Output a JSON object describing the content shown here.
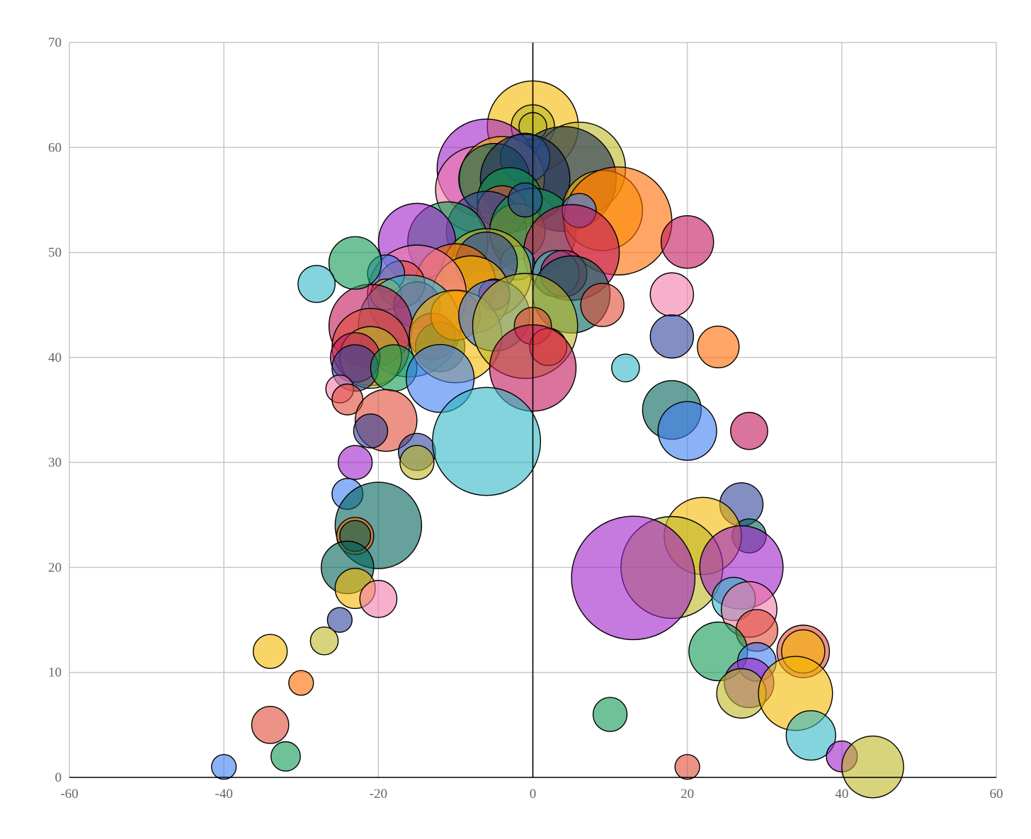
{
  "chart_data": {
    "type": "scatter",
    "variant": "bubble",
    "title": "",
    "xlabel": "",
    "ylabel": "",
    "xlim": [
      -60,
      60
    ],
    "ylim": [
      0,
      70
    ],
    "x_ticks": [
      -60,
      -40,
      -20,
      0,
      20,
      40,
      60
    ],
    "y_ticks": [
      0,
      10,
      20,
      30,
      40,
      50,
      60,
      70
    ],
    "grid": true,
    "legend": "none",
    "bubble_opacity": 0.6,
    "palette": {
      "yellow": "#f5b800",
      "olive": "#bdb824",
      "purple": "#a020c8",
      "pink": "#f47aa8",
      "blue": "#3d7df2",
      "teal": "#30b8c4",
      "green": "#0f9a52",
      "darkteal": "#00635a",
      "orange": "#ff6a00",
      "salmon": "#e04a36",
      "navy": "#30449a",
      "crimson": "#c2185b",
      "slate": "#1c2e5a"
    },
    "points": [
      {
        "x": 0,
        "y": 62,
        "r": 5.9,
        "c": "yellow"
      },
      {
        "x": 0,
        "y": 62,
        "r": 2.8,
        "c": "olive"
      },
      {
        "x": 0,
        "y": 62,
        "r": 1.8,
        "c": "olive"
      },
      {
        "x": 6,
        "y": 58,
        "r": 6.0,
        "c": "olive"
      },
      {
        "x": 4,
        "y": 57,
        "r": 6.8,
        "c": "slate"
      },
      {
        "x": -6,
        "y": 58,
        "r": 6.4,
        "c": "purple"
      },
      {
        "x": -7,
        "y": 56,
        "r": 5.6,
        "c": "pink"
      },
      {
        "x": -4,
        "y": 57,
        "r": 5.5,
        "c": "yellow"
      },
      {
        "x": -1,
        "y": 59,
        "r": 3.2,
        "c": "blue"
      },
      {
        "x": -5,
        "y": 57,
        "r": 4.6,
        "c": "darkteal"
      },
      {
        "x": -1,
        "y": 57,
        "r": 5.8,
        "c": "slate"
      },
      {
        "x": -3,
        "y": 55,
        "r": 4.2,
        "c": "green"
      },
      {
        "x": -4,
        "y": 54,
        "r": 3.2,
        "c": "salmon"
      },
      {
        "x": -6,
        "y": 52,
        "r": 5.2,
        "c": "navy"
      },
      {
        "x": -2,
        "y": 52,
        "r": 3.6,
        "c": "orange"
      },
      {
        "x": 0,
        "y": 52,
        "r": 5.6,
        "c": "green"
      },
      {
        "x": -1,
        "y": 55,
        "r": 2.2,
        "c": "navy"
      },
      {
        "x": -11,
        "y": 51,
        "r": 5.2,
        "c": "green"
      },
      {
        "x": -15,
        "y": 51,
        "r": 5.0,
        "c": "purple"
      },
      {
        "x": 9,
        "y": 54,
        "r": 5.2,
        "c": "yellow"
      },
      {
        "x": 11,
        "y": 53,
        "r": 7.0,
        "c": "orange"
      },
      {
        "x": 6,
        "y": 54,
        "r": 2.2,
        "c": "blue"
      },
      {
        "x": 5,
        "y": 50,
        "r": 6.2,
        "c": "crimson"
      },
      {
        "x": 3,
        "y": 48,
        "r": 3.0,
        "c": "teal"
      },
      {
        "x": 4,
        "y": 48,
        "r": 3.0,
        "c": "crimson"
      },
      {
        "x": 5,
        "y": 46,
        "r": 5.0,
        "c": "darkteal"
      },
      {
        "x": 9,
        "y": 45,
        "r": 2.8,
        "c": "salmon"
      },
      {
        "x": -2,
        "y": 49,
        "r": 2.2,
        "c": "teal"
      },
      {
        "x": -6,
        "y": 48,
        "r": 5.8,
        "c": "olive"
      },
      {
        "x": -6,
        "y": 49,
        "r": 4.0,
        "c": "navy"
      },
      {
        "x": -10,
        "y": 47,
        "r": 5.2,
        "c": "orange"
      },
      {
        "x": -8,
        "y": 46,
        "r": 5.0,
        "c": "yellow"
      },
      {
        "x": -5,
        "y": 46,
        "r": 2.0,
        "c": "crimson"
      },
      {
        "x": -15,
        "y": 46,
        "r": 6.4,
        "c": "pink"
      },
      {
        "x": -17,
        "y": 47,
        "r": 3.0,
        "c": "salmon"
      },
      {
        "x": -19,
        "y": 48,
        "r": 2.4,
        "c": "blue"
      },
      {
        "x": -19,
        "y": 46,
        "r": 2.0,
        "c": "yellow"
      },
      {
        "x": -15,
        "y": 45,
        "r": 3.0,
        "c": "crimson"
      },
      {
        "x": -16,
        "y": 43,
        "r": 6.6,
        "c": "teal"
      },
      {
        "x": -21,
        "y": 43,
        "r": 5.4,
        "c": "crimson"
      },
      {
        "x": -21,
        "y": 41,
        "r": 5.0,
        "c": "salmon"
      },
      {
        "x": -21,
        "y": 40,
        "r": 4.0,
        "c": "olive"
      },
      {
        "x": -23,
        "y": 40,
        "r": 3.2,
        "c": "crimson"
      },
      {
        "x": -23,
        "y": 39,
        "r": 3.0,
        "c": "navy"
      },
      {
        "x": -18,
        "y": 39,
        "r": 3.0,
        "c": "green"
      },
      {
        "x": -13,
        "y": 42,
        "r": 3.0,
        "c": "crimson"
      },
      {
        "x": -12,
        "y": 41,
        "r": 3.2,
        "c": "darkteal"
      },
      {
        "x": -10,
        "y": 44,
        "r": 3.2,
        "c": "orange"
      },
      {
        "x": -10,
        "y": 42,
        "r": 6.0,
        "c": "yellow"
      },
      {
        "x": -12,
        "y": 38,
        "r": 4.4,
        "c": "blue"
      },
      {
        "x": -5,
        "y": 44,
        "r": 4.6,
        "c": "blue"
      },
      {
        "x": -1,
        "y": 43,
        "r": 6.8,
        "c": "olive"
      },
      {
        "x": 0,
        "y": 43,
        "r": 2.4,
        "c": "salmon"
      },
      {
        "x": 2,
        "y": 41,
        "r": 2.4,
        "c": "orange"
      },
      {
        "x": 0,
        "y": 39,
        "r": 5.6,
        "c": "crimson"
      },
      {
        "x": -23,
        "y": 49,
        "r": 3.4,
        "c": "green"
      },
      {
        "x": -28,
        "y": 47,
        "r": 2.4,
        "c": "teal"
      },
      {
        "x": -25,
        "y": 37,
        "r": 1.8,
        "c": "pink"
      },
      {
        "x": -24,
        "y": 36,
        "r": 2.0,
        "c": "salmon"
      },
      {
        "x": -19,
        "y": 34,
        "r": 4.0,
        "c": "salmon"
      },
      {
        "x": -21,
        "y": 33,
        "r": 2.2,
        "c": "navy"
      },
      {
        "x": -15,
        "y": 31,
        "r": 2.4,
        "c": "navy"
      },
      {
        "x": -15,
        "y": 30,
        "r": 2.2,
        "c": "olive"
      },
      {
        "x": -6,
        "y": 32,
        "r": 7.0,
        "c": "teal"
      },
      {
        "x": -23,
        "y": 30,
        "r": 2.2,
        "c": "purple"
      },
      {
        "x": -24,
        "y": 27,
        "r": 2.0,
        "c": "blue"
      },
      {
        "x": -20,
        "y": 24,
        "r": 5.6,
        "c": "darkteal"
      },
      {
        "x": -23,
        "y": 23,
        "r": 2.4,
        "c": "orange"
      },
      {
        "x": -23,
        "y": 23,
        "r": 2.0,
        "c": "darkteal"
      },
      {
        "x": -24,
        "y": 20,
        "r": 3.4,
        "c": "darkteal"
      },
      {
        "x": -23,
        "y": 18,
        "r": 2.6,
        "c": "yellow"
      },
      {
        "x": -20,
        "y": 17,
        "r": 2.4,
        "c": "pink"
      },
      {
        "x": -25,
        "y": 15,
        "r": 1.6,
        "c": "navy"
      },
      {
        "x": -27,
        "y": 13,
        "r": 1.8,
        "c": "olive"
      },
      {
        "x": -34,
        "y": 12,
        "r": 2.2,
        "c": "yellow"
      },
      {
        "x": -30,
        "y": 9,
        "r": 1.6,
        "c": "orange"
      },
      {
        "x": -34,
        "y": 5,
        "r": 2.4,
        "c": "salmon"
      },
      {
        "x": -32,
        "y": 2,
        "r": 1.9,
        "c": "green"
      },
      {
        "x": -40,
        "y": 1,
        "r": 1.6,
        "c": "blue"
      },
      {
        "x": 20,
        "y": 51,
        "r": 3.4,
        "c": "crimson"
      },
      {
        "x": 18,
        "y": 46,
        "r": 2.8,
        "c": "pink"
      },
      {
        "x": 18,
        "y": 42,
        "r": 2.8,
        "c": "navy"
      },
      {
        "x": 24,
        "y": 41,
        "r": 2.7,
        "c": "orange"
      },
      {
        "x": 12,
        "y": 39,
        "r": 1.8,
        "c": "teal"
      },
      {
        "x": 18,
        "y": 35,
        "r": 3.8,
        "c": "darkteal"
      },
      {
        "x": 20,
        "y": 33,
        "r": 3.8,
        "c": "blue"
      },
      {
        "x": 28,
        "y": 33,
        "r": 2.4,
        "c": "crimson"
      },
      {
        "x": 27,
        "y": 26,
        "r": 2.8,
        "c": "navy"
      },
      {
        "x": 28,
        "y": 23,
        "r": 2.2,
        "c": "darkteal"
      },
      {
        "x": 22,
        "y": 23,
        "r": 5.0,
        "c": "yellow"
      },
      {
        "x": 18,
        "y": 20,
        "r": 6.6,
        "c": "olive"
      },
      {
        "x": 13,
        "y": 19,
        "r": 8.0,
        "c": "purple"
      },
      {
        "x": 27,
        "y": 20,
        "r": 5.4,
        "c": "purple"
      },
      {
        "x": 26,
        "y": 17,
        "r": 2.8,
        "c": "teal"
      },
      {
        "x": 28,
        "y": 16,
        "r": 3.6,
        "c": "pink"
      },
      {
        "x": 29,
        "y": 14,
        "r": 2.7,
        "c": "salmon"
      },
      {
        "x": 24,
        "y": 12,
        "r": 3.8,
        "c": "green"
      },
      {
        "x": 29,
        "y": 11,
        "r": 2.5,
        "c": "blue"
      },
      {
        "x": 28,
        "y": 9,
        "r": 3.2,
        "c": "purple"
      },
      {
        "x": 27,
        "y": 8,
        "r": 3.2,
        "c": "olive"
      },
      {
        "x": 35,
        "y": 12,
        "r": 3.4,
        "c": "salmon"
      },
      {
        "x": 35,
        "y": 12,
        "r": 2.8,
        "c": "yellow"
      },
      {
        "x": 34,
        "y": 8,
        "r": 4.8,
        "c": "yellow"
      },
      {
        "x": 36,
        "y": 4,
        "r": 3.2,
        "c": "teal"
      },
      {
        "x": 10,
        "y": 6,
        "r": 2.2,
        "c": "green"
      },
      {
        "x": 20,
        "y": 1,
        "r": 1.6,
        "c": "salmon"
      },
      {
        "x": 40,
        "y": 2,
        "r": 2.0,
        "c": "purple"
      },
      {
        "x": 44,
        "y": 1,
        "r": 4.0,
        "c": "olive"
      }
    ]
  }
}
